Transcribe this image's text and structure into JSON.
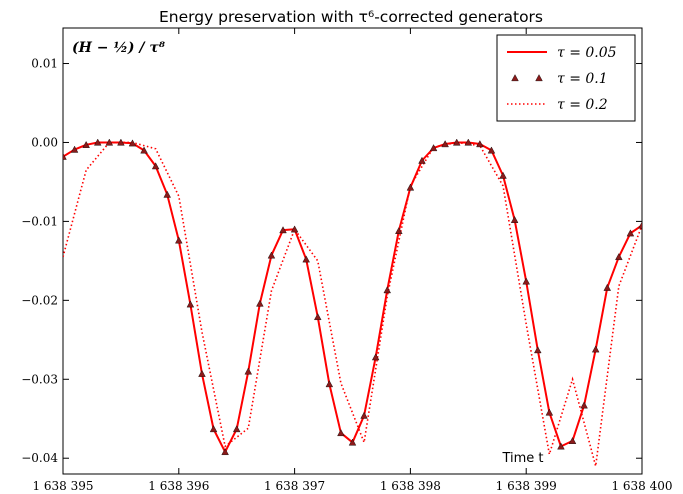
{
  "chart_data": {
    "type": "line",
    "title": "Energy preservation with τ⁶-corrected generators",
    "annotation": "(H − ½) / τ⁸",
    "xlabel": "Time t",
    "ylabel": "",
    "xlim": [
      1638395,
      1638400
    ],
    "ylim": [
      -0.042,
      0.0145
    ],
    "xticks": [
      {
        "value": 1638395,
        "label": "1 638 395"
      },
      {
        "value": 1638396,
        "label": "1 638 396"
      },
      {
        "value": 1638397,
        "label": "1 638 397"
      },
      {
        "value": 1638398,
        "label": "1 638 398"
      },
      {
        "value": 1638399,
        "label": "1 638 399"
      },
      {
        "value": 1638400,
        "label": "1 638 400"
      }
    ],
    "yticks": [
      {
        "value": 0.01,
        "label": "0.01"
      },
      {
        "value": 0.0,
        "label": "0.00"
      },
      {
        "value": -0.01,
        "label": "−0.01"
      },
      {
        "value": -0.02,
        "label": "−0.02"
      },
      {
        "value": -0.03,
        "label": "−0.03"
      },
      {
        "value": -0.04,
        "label": "−0.04"
      }
    ],
    "grid": false,
    "legend_position": "top-right",
    "series": [
      {
        "name": "τ = 0.05",
        "style": "solid",
        "color": "#ff0000",
        "x": [
          1638395.0,
          1638395.1,
          1638395.2,
          1638395.3,
          1638395.4,
          1638395.5,
          1638395.6,
          1638395.7,
          1638395.8,
          1638395.9,
          1638396.0,
          1638396.1,
          1638396.2,
          1638396.3,
          1638396.4,
          1638396.5,
          1638396.6,
          1638396.7,
          1638396.8,
          1638396.9,
          1638397.0,
          1638397.1,
          1638397.2,
          1638397.3,
          1638397.4,
          1638397.5,
          1638397.6,
          1638397.7,
          1638397.8,
          1638397.9,
          1638398.0,
          1638398.1,
          1638398.2,
          1638398.3,
          1638398.4,
          1638398.5,
          1638398.6,
          1638398.7,
          1638398.8,
          1638398.9,
          1638399.0,
          1638399.1,
          1638399.2,
          1638399.3,
          1638399.4,
          1638399.5,
          1638399.6,
          1638399.7,
          1638399.8,
          1638399.9,
          1638400.0
        ],
        "y": [
          -0.0018,
          -0.0009,
          -0.0003,
          0.0,
          0.0,
          0.0,
          -0.0001,
          -0.001,
          -0.003,
          -0.0066,
          -0.0124,
          -0.0205,
          -0.0293,
          -0.0363,
          -0.0392,
          -0.0363,
          -0.029,
          -0.0204,
          -0.0143,
          -0.0111,
          -0.011,
          -0.0148,
          -0.0221,
          -0.0306,
          -0.0368,
          -0.038,
          -0.0346,
          -0.0272,
          -0.0187,
          -0.0112,
          -0.0057,
          -0.0023,
          -0.0007,
          -0.0002,
          0.0,
          0.0,
          -0.0002,
          -0.001,
          -0.0042,
          -0.0098,
          -0.0176,
          -0.0263,
          -0.0342,
          -0.0385,
          -0.0378,
          -0.0333,
          -0.0262,
          -0.0184,
          -0.0145,
          -0.0115,
          -0.0105
        ]
      },
      {
        "name": "τ = 0.1",
        "style": "triangle",
        "color": "#8b1a1a",
        "x": [
          1638395.0,
          1638395.1,
          1638395.2,
          1638395.3,
          1638395.4,
          1638395.5,
          1638395.6,
          1638395.7,
          1638395.8,
          1638395.9,
          1638396.0,
          1638396.1,
          1638396.2,
          1638396.3,
          1638396.4,
          1638396.5,
          1638396.6,
          1638396.7,
          1638396.8,
          1638396.9,
          1638397.0,
          1638397.1,
          1638397.2,
          1638397.3,
          1638397.4,
          1638397.5,
          1638397.6,
          1638397.7,
          1638397.8,
          1638397.9,
          1638398.0,
          1638398.1,
          1638398.2,
          1638398.3,
          1638398.4,
          1638398.5,
          1638398.6,
          1638398.7,
          1638398.8,
          1638398.9,
          1638399.0,
          1638399.1,
          1638399.2,
          1638399.3,
          1638399.4,
          1638399.5,
          1638399.6,
          1638399.7,
          1638399.8,
          1638399.9,
          1638400.0
        ],
        "y": [
          -0.0018,
          -0.0009,
          -0.0003,
          0.0,
          0.0,
          0.0,
          -0.0001,
          -0.001,
          -0.003,
          -0.0066,
          -0.0124,
          -0.0205,
          -0.0293,
          -0.0363,
          -0.0392,
          -0.0363,
          -0.029,
          -0.0204,
          -0.0143,
          -0.0111,
          -0.011,
          -0.0148,
          -0.0221,
          -0.0306,
          -0.0368,
          -0.038,
          -0.0346,
          -0.0272,
          -0.0187,
          -0.0112,
          -0.0057,
          -0.0023,
          -0.0007,
          -0.0002,
          0.0,
          0.0,
          -0.0002,
          -0.001,
          -0.0042,
          -0.0098,
          -0.0176,
          -0.0263,
          -0.0342,
          -0.0385,
          -0.0378,
          -0.0333,
          -0.0262,
          -0.0184,
          -0.0145,
          -0.0115,
          -0.0105
        ]
      },
      {
        "name": "τ = 0.2",
        "style": "dotted",
        "color": "#ff0000",
        "x": [
          1638395.0,
          1638395.2,
          1638395.4,
          1638395.6,
          1638395.8,
          1638396.0,
          1638396.2,
          1638396.4,
          1638396.6,
          1638396.8,
          1638397.0,
          1638397.2,
          1638397.4,
          1638397.6,
          1638397.8,
          1638398.0,
          1638398.2,
          1638398.4,
          1638398.6,
          1638398.8,
          1638399.0,
          1638399.2,
          1638399.4,
          1638399.6,
          1638399.8,
          1638400.0
        ],
        "y": [
          -0.0145,
          -0.0035,
          0.0,
          0.0,
          -0.0008,
          -0.0068,
          -0.024,
          -0.0385,
          -0.0362,
          -0.0188,
          -0.011,
          -0.015,
          -0.0305,
          -0.038,
          -0.0195,
          -0.0055,
          -0.0006,
          0.0,
          -0.0004,
          -0.0055,
          -0.023,
          -0.0395,
          -0.03,
          -0.041,
          -0.0182,
          -0.0105
        ]
      }
    ]
  }
}
